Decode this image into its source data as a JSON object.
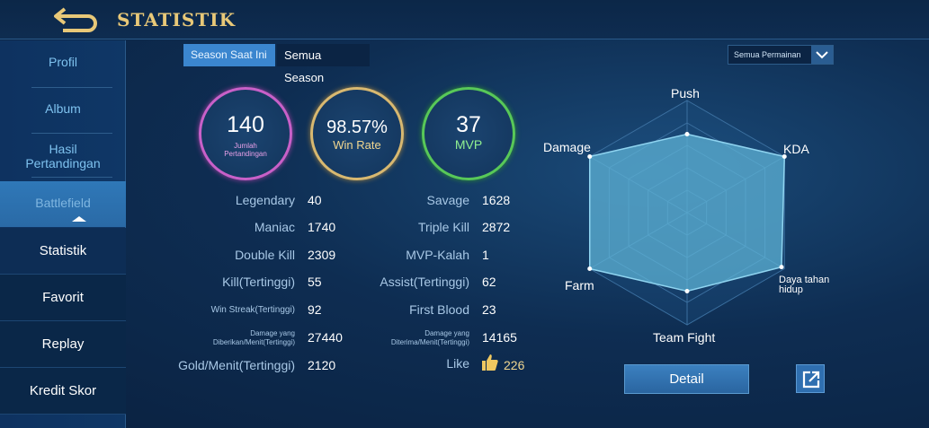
{
  "header": {
    "title": "STATISTIK"
  },
  "sidebar": {
    "items": [
      {
        "label": "Profil"
      },
      {
        "label": "Album"
      },
      {
        "label": "Hasil Pertandingan"
      },
      {
        "label": "Battlefield"
      }
    ],
    "subitems": [
      {
        "label": "Statistik"
      },
      {
        "label": "Favorit"
      },
      {
        "label": "Replay"
      },
      {
        "label": "Kredit Skor"
      }
    ]
  },
  "tabs": {
    "current": "Season Saat Ini",
    "all": "Semua Season"
  },
  "filter": {
    "selected": "Semua Permainan"
  },
  "summary": {
    "matches": {
      "value": "140",
      "label": "Jumlah Pertandingan"
    },
    "winrate": {
      "value": "98.57%",
      "label": "Win Rate"
    },
    "mvp": {
      "value": "37",
      "label": "MVP"
    }
  },
  "stats_left": [
    {
      "label": "Legendary",
      "value": "40"
    },
    {
      "label": "Maniac",
      "value": "1740"
    },
    {
      "label": "Double Kill",
      "value": "2309"
    },
    {
      "label": "Kill(Tertinggi)",
      "value": "55"
    },
    {
      "label": "Win Streak(Tertinggi)",
      "value": "92"
    },
    {
      "label": "Damage yang Diberikan/Menit(Tertinggi)",
      "value": "27440"
    },
    {
      "label": "Gold/Menit(Tertinggi)",
      "value": "2120"
    }
  ],
  "stats_right": [
    {
      "label": "Savage",
      "value": "1628"
    },
    {
      "label": "Triple Kill",
      "value": "2872"
    },
    {
      "label": "MVP-Kalah",
      "value": "1"
    },
    {
      "label": "Assist(Tertinggi)",
      "value": "62"
    },
    {
      "label": "First Blood",
      "value": "23"
    },
    {
      "label": "Damage yang Diterima/Menit(Tertinggi)",
      "value": "14165"
    }
  ],
  "like": {
    "label": "Like",
    "value": "226"
  },
  "radar": {
    "axes": [
      "Push",
      "KDA",
      "Daya tahan hidup",
      "Team Fight",
      "Farm",
      "Damage"
    ],
    "values": [
      0.7,
      1.0,
      0.97,
      0.7,
      1.0,
      1.0
    ],
    "fill_color": "#5fb6d8"
  },
  "detail_label": "Detail",
  "colors": {
    "accent": "#3b86cf",
    "title": "#e8c878"
  }
}
